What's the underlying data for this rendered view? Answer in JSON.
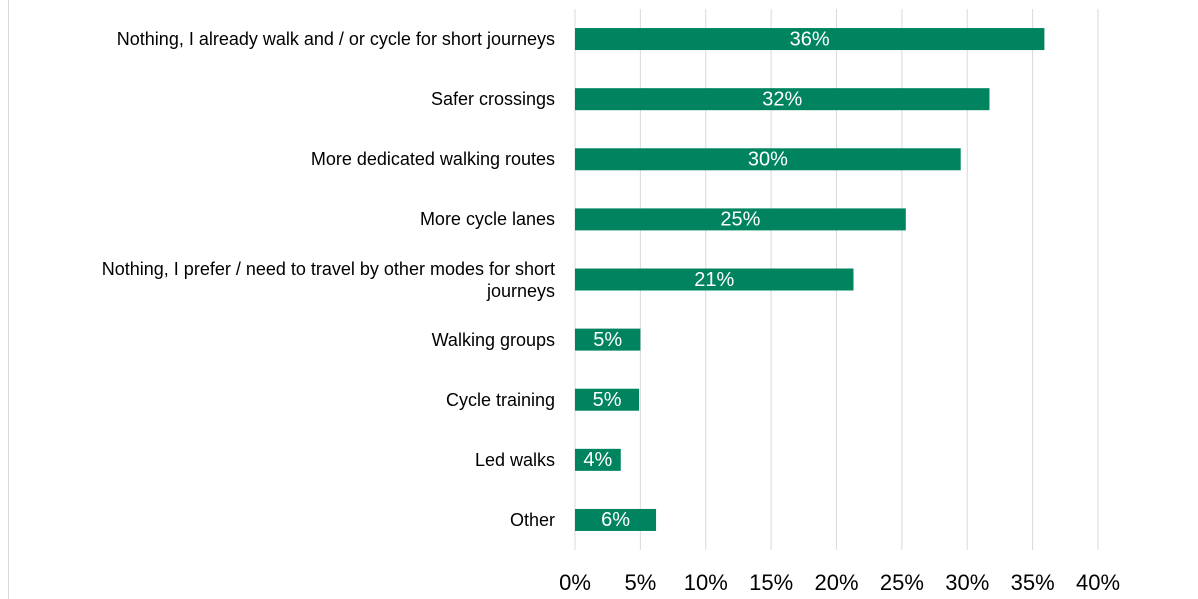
{
  "chart_data": {
    "type": "bar",
    "orientation": "horizontal",
    "categories": [
      "Nothing, I already walk and / or cycle for short journeys",
      "Safer crossings",
      "More dedicated walking routes",
      "More cycle lanes",
      "Nothing, I prefer / need to travel by other modes for short journeys",
      "Walking groups",
      "Cycle training",
      "Led walks",
      "Other"
    ],
    "values": [
      35.9,
      31.7,
      29.5,
      25.3,
      21.3,
      5.0,
      4.9,
      3.5,
      6.2
    ],
    "value_labels": [
      "36%",
      "32%",
      "30%",
      "25%",
      "21%",
      "5%",
      "5%",
      "4%",
      "6%"
    ],
    "color": "#00845f",
    "xlim": [
      0,
      40
    ],
    "xticks": [
      {
        "value": 0,
        "label": "0%"
      },
      {
        "value": 5,
        "label": "5%"
      },
      {
        "value": 10,
        "label": "10%"
      },
      {
        "value": 15,
        "label": "15%"
      },
      {
        "value": 20,
        "label": "20%"
      },
      {
        "value": 25,
        "label": "25%"
      },
      {
        "value": 30,
        "label": "30%"
      },
      {
        "value": 35,
        "label": "35%"
      },
      {
        "value": 40,
        "label": "40%"
      }
    ],
    "grid": true
  }
}
